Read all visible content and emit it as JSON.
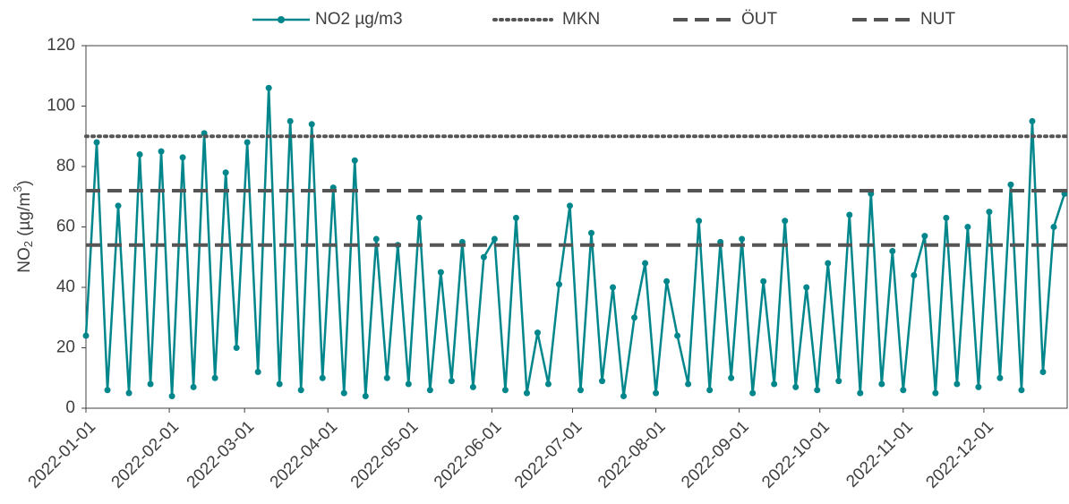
{
  "chart_data": {
    "type": "line",
    "ylabel": [
      "NO",
      "2",
      " (µg/m",
      "3",
      ")"
    ],
    "x": [
      "2022-01-01",
      "2022-01-05",
      "2022-01-09",
      "2022-01-13",
      "2022-01-17",
      "2022-01-21",
      "2022-01-25",
      "2022-01-29",
      "2022-02-02",
      "2022-02-06",
      "2022-02-10",
      "2022-02-14",
      "2022-02-18",
      "2022-02-22",
      "2022-02-26",
      "2022-03-02",
      "2022-03-06",
      "2022-03-10",
      "2022-03-14",
      "2022-03-18",
      "2022-03-22",
      "2022-03-26",
      "2022-03-30",
      "2022-04-03",
      "2022-04-07",
      "2022-04-11",
      "2022-04-15",
      "2022-04-19",
      "2022-04-23",
      "2022-04-27",
      "2022-05-01",
      "2022-05-05",
      "2022-05-09",
      "2022-05-13",
      "2022-05-17",
      "2022-05-21",
      "2022-05-25",
      "2022-05-29",
      "2022-06-02",
      "2022-06-06",
      "2022-06-10",
      "2022-06-14",
      "2022-06-18",
      "2022-06-22",
      "2022-06-26",
      "2022-06-30",
      "2022-07-04",
      "2022-07-08",
      "2022-07-12",
      "2022-07-16",
      "2022-07-20",
      "2022-07-24",
      "2022-07-28",
      "2022-08-01",
      "2022-08-05",
      "2022-08-09",
      "2022-08-13",
      "2022-08-17",
      "2022-08-21",
      "2022-08-25",
      "2022-08-29",
      "2022-09-02",
      "2022-09-06",
      "2022-09-10",
      "2022-09-14",
      "2022-09-18",
      "2022-09-22",
      "2022-09-26",
      "2022-09-30",
      "2022-10-04",
      "2022-10-08",
      "2022-10-12",
      "2022-10-16",
      "2022-10-20",
      "2022-10-24",
      "2022-10-28",
      "2022-11-01",
      "2022-11-05",
      "2022-11-09",
      "2022-11-13",
      "2022-11-17",
      "2022-11-21",
      "2022-11-25",
      "2022-11-29",
      "2022-12-03",
      "2022-12-07",
      "2022-12-11",
      "2022-12-15",
      "2022-12-19",
      "2022-12-23",
      "2022-12-27",
      "2022-12-31"
    ],
    "series": [
      {
        "name": "NO2 µg/m3",
        "color": "#00868b",
        "values": [
          24,
          88,
          6,
          67,
          5,
          84,
          8,
          85,
          4,
          83,
          7,
          91,
          10,
          78,
          20,
          88,
          12,
          106,
          8,
          95,
          6,
          94,
          10,
          73,
          5,
          82,
          4,
          56,
          10,
          54,
          8,
          63,
          6,
          45,
          9,
          55,
          7,
          50,
          56,
          6,
          63,
          5,
          25,
          8,
          41,
          67,
          6,
          58,
          9,
          40,
          4,
          30,
          48,
          5,
          42,
          24,
          8,
          62,
          6,
          55,
          10,
          56,
          5,
          42,
          8,
          62,
          7,
          40,
          6,
          48,
          9,
          64,
          5,
          71,
          8,
          52,
          6,
          44,
          57,
          5,
          63,
          8,
          60,
          7,
          65,
          10,
          74,
          6,
          95,
          12,
          60,
          71
        ]
      }
    ],
    "reference_lines": [
      {
        "name": "MKN",
        "value": 90,
        "style": "dotted",
        "color": "#555555"
      },
      {
        "name": "ÖUT",
        "value": 72,
        "style": "dashed",
        "color": "#555555"
      },
      {
        "name": "NUT",
        "value": 54,
        "style": "dashed",
        "color": "#555555"
      }
    ],
    "xlim": [
      "2022-01-01",
      "2022-12-31"
    ],
    "xticks": [
      "2022-01-01",
      "2022-02-01",
      "2022-03-01",
      "2022-04-01",
      "2022-05-01",
      "2022-06-01",
      "2022-07-01",
      "2022-08-01",
      "2022-09-01",
      "2022-10-01",
      "2022-11-01",
      "2022-12-01"
    ],
    "ylim": [
      0,
      120
    ],
    "yticks": [
      0,
      20,
      40,
      60,
      80,
      100,
      120
    ]
  }
}
